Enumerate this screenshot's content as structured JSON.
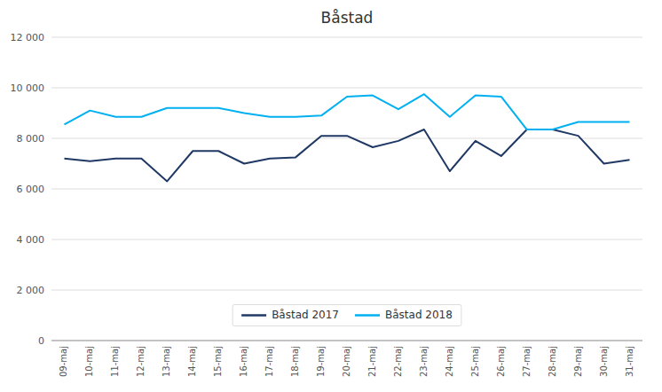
{
  "chart_data": {
    "type": "line",
    "title": "Båstad",
    "categories": [
      "09-maj",
      "10-maj",
      "11-maj",
      "12-maj",
      "13-maj",
      "14-maj",
      "15-maj",
      "16-maj",
      "17-maj",
      "18-maj",
      "19-maj",
      "20-maj",
      "21-maj",
      "22-maj",
      "23-maj",
      "24-maj",
      "25-maj",
      "26-maj",
      "27-maj",
      "28-maj",
      "29-maj",
      "30-maj",
      "31-maj"
    ],
    "series": [
      {
        "name": "Båstad 2017",
        "color": "#1F3864",
        "values": [
          7200,
          7100,
          7200,
          7200,
          6300,
          7500,
          7500,
          7000,
          7200,
          7250,
          8100,
          8100,
          7650,
          7900,
          8350,
          6700,
          7900,
          7300,
          8350,
          8350,
          8100,
          7000,
          7150
        ]
      },
      {
        "name": "Båstad 2018",
        "color": "#00B0F0",
        "values": [
          8550,
          9100,
          8850,
          8850,
          9200,
          9200,
          9200,
          9000,
          8850,
          8850,
          8900,
          9650,
          9700,
          9150,
          9750,
          8850,
          9700,
          9650,
          8350,
          8350,
          8650,
          8650,
          8650
        ]
      }
    ],
    "ylim": [
      0,
      12000
    ],
    "yticks": [
      0,
      {
        "value": 2000,
        "label": "2 000"
      },
      {
        "value": 4000,
        "label": "4 000"
      },
      {
        "value": 6000,
        "label": "6 000"
      },
      {
        "value": 8000,
        "label": "8 000"
      },
      {
        "value": 10000,
        "label": "10 000"
      },
      {
        "value": 12000,
        "label": "12 000"
      }
    ],
    "grid": true,
    "legend": "bottom"
  }
}
